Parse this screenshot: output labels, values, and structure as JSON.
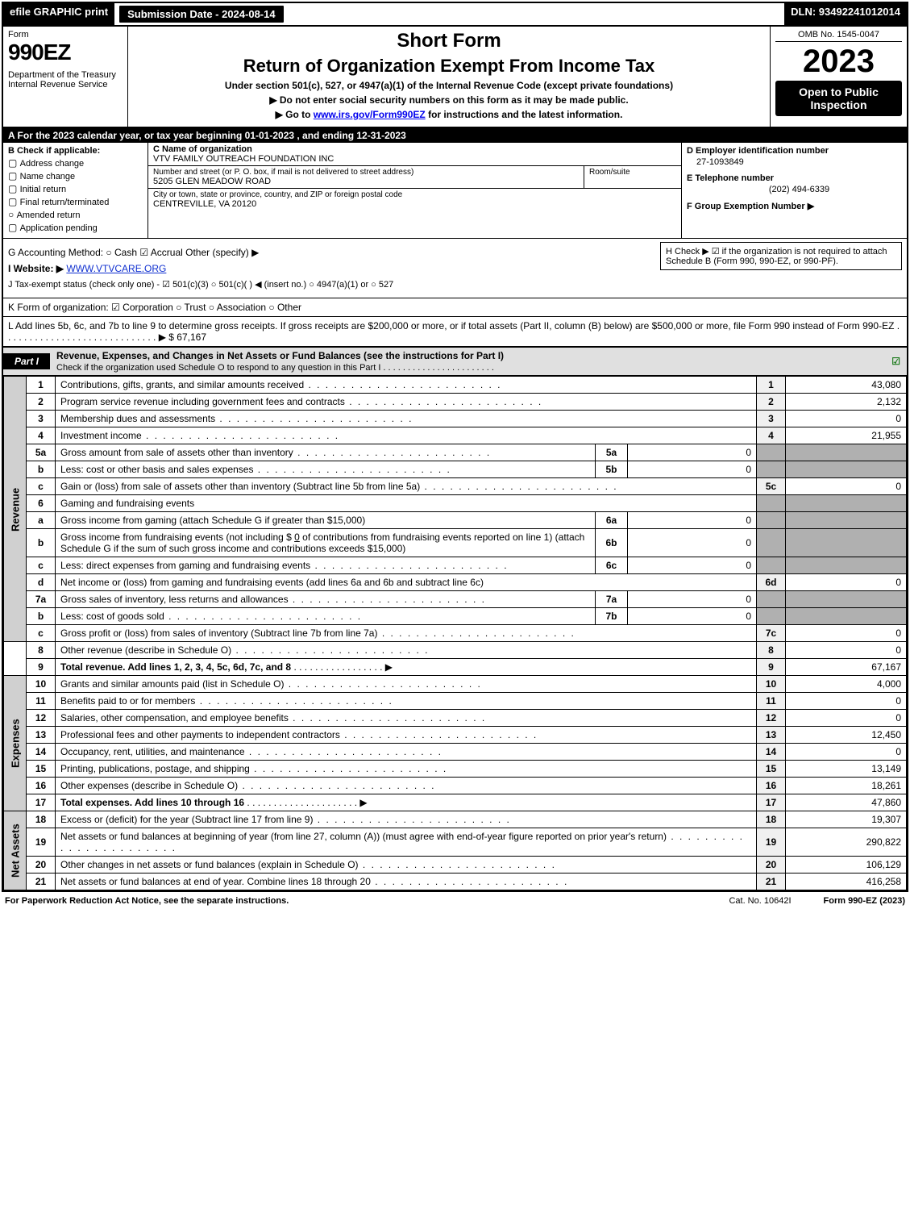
{
  "topbar": {
    "efile": "efile GRAPHIC print",
    "submission": "Submission Date - 2024-08-14",
    "dln": "DLN: 93492241012014"
  },
  "header": {
    "form_label": "Form",
    "form_num": "990EZ",
    "dept": "Department of the Treasury\nInternal Revenue Service",
    "short": "Short Form",
    "title": "Return of Organization Exempt From Income Tax",
    "subtitle": "Under section 501(c), 527, or 4947(a)(1) of the Internal Revenue Code (except private foundations)",
    "instr1": "▶ Do not enter social security numbers on this form as it may be made public.",
    "instr2_pre": "▶ Go to ",
    "instr2_link": "www.irs.gov/Form990EZ",
    "instr2_post": " for instructions and the latest information.",
    "omb": "OMB No. 1545-0047",
    "year": "2023",
    "inspection": "Open to Public Inspection"
  },
  "row_a": "A  For the 2023 calendar year, or tax year beginning 01-01-2023 , and ending 12-31-2023",
  "col_b": {
    "title": "B  Check if applicable:",
    "opts": [
      "Address change",
      "Name change",
      "Initial return",
      "Final return/terminated",
      "Amended return",
      "Application pending"
    ]
  },
  "box_c": {
    "label": "C Name of organization",
    "name": "VTV FAMILY OUTREACH FOUNDATION INC",
    "street_label": "Number and street (or P. O. box, if mail is not delivered to street address)",
    "street": "5205 GLEN MEADOW ROAD",
    "suite_label": "Room/suite",
    "city_label": "City or town, state or province, country, and ZIP or foreign postal code",
    "city": "CENTREVILLE, VA  20120"
  },
  "col_def": {
    "d_label": "D Employer identification number",
    "d_val": "27-1093849",
    "e_label": "E Telephone number",
    "e_val": "(202) 494-6339",
    "f_label": "F Group Exemption Number   ▶"
  },
  "ghij": {
    "g": "G Accounting Method:   ○ Cash   ☑ Accrual   Other (specify) ▶ ",
    "i_pre": "I Website: ▶",
    "i_link": "WWW.VTVCARE.ORG",
    "j": "J Tax-exempt status (check only one) -  ☑ 501(c)(3)  ○ 501(c)(  ) ◀ (insert no.)  ○ 4947(a)(1) or  ○ 527",
    "h": "H  Check ▶ ☑ if the organization is not required to attach Schedule B (Form 990, 990-EZ, or 990-PF)."
  },
  "k": "K Form of organization:   ☑ Corporation   ○ Trust   ○ Association   ○ Other",
  "l": {
    "text": "L Add lines 5b, 6c, and 7b to line 9 to determine gross receipts. If gross receipts are $200,000 or more, or if total assets (Part II, column (B) below) are $500,000 or more, file Form 990 instead of Form 990-EZ . . . . . . . . . . . . . . . . . . . . . . . . . . . . .   ▶ $",
    "amount": "67,167"
  },
  "part1": {
    "tab": "Part I",
    "title": "Revenue, Expenses, and Changes in Net Assets or Fund Balances (see the instructions for Part I)",
    "subtitle": "Check if the organization used Schedule O to respond to any question in this Part I . . . . . . . . . . . . . . . . . . . . . . ."
  },
  "sidelabels": {
    "revenue": "Revenue",
    "expenses": "Expenses",
    "netassets": "Net Assets"
  },
  "lines": {
    "l1": {
      "num": "1",
      "desc": "Contributions, gifts, grants, and similar amounts received",
      "rn": "1",
      "amt": "43,080"
    },
    "l2": {
      "num": "2",
      "desc": "Program service revenue including government fees and contracts",
      "rn": "2",
      "amt": "2,132"
    },
    "l3": {
      "num": "3",
      "desc": "Membership dues and assessments",
      "rn": "3",
      "amt": "0"
    },
    "l4": {
      "num": "4",
      "desc": "Investment income",
      "rn": "4",
      "amt": "21,955"
    },
    "l5a": {
      "num": "5a",
      "desc": "Gross amount from sale of assets other than inventory",
      "sn": "5a",
      "sv": "0"
    },
    "l5b": {
      "num": "b",
      "desc": "Less: cost or other basis and sales expenses",
      "sn": "5b",
      "sv": "0"
    },
    "l5c": {
      "num": "c",
      "desc": "Gain or (loss) from sale of assets other than inventory (Subtract line 5b from line 5a)",
      "rn": "5c",
      "amt": "0"
    },
    "l6": {
      "num": "6",
      "desc": "Gaming and fundraising events"
    },
    "l6a": {
      "num": "a",
      "desc": "Gross income from gaming (attach Schedule G if greater than $15,000)",
      "sn": "6a",
      "sv": "0"
    },
    "l6b": {
      "num": "b",
      "desc": "Gross income from fundraising events (not including $ ",
      "desc_mid": "0",
      "desc2": " of contributions from fundraising events reported on line 1) (attach Schedule G if the sum of such gross income and contributions exceeds $15,000)",
      "sn": "6b",
      "sv": "0"
    },
    "l6c": {
      "num": "c",
      "desc": "Less: direct expenses from gaming and fundraising events",
      "sn": "6c",
      "sv": "0"
    },
    "l6d": {
      "num": "d",
      "desc": "Net income or (loss) from gaming and fundraising events (add lines 6a and 6b and subtract line 6c)",
      "rn": "6d",
      "amt": "0"
    },
    "l7a": {
      "num": "7a",
      "desc": "Gross sales of inventory, less returns and allowances",
      "sn": "7a",
      "sv": "0"
    },
    "l7b": {
      "num": "b",
      "desc": "Less: cost of goods sold",
      "sn": "7b",
      "sv": "0"
    },
    "l7c": {
      "num": "c",
      "desc": "Gross profit or (loss) from sales of inventory (Subtract line 7b from line 7a)",
      "rn": "7c",
      "amt": "0"
    },
    "l8": {
      "num": "8",
      "desc": "Other revenue (describe in Schedule O)",
      "rn": "8",
      "amt": "0"
    },
    "l9": {
      "num": "9",
      "desc": "Total revenue. Add lines 1, 2, 3, 4, 5c, 6d, 7c, and 8",
      "rn": "9",
      "amt": "67,167"
    },
    "l10": {
      "num": "10",
      "desc": "Grants and similar amounts paid (list in Schedule O)",
      "rn": "10",
      "amt": "4,000"
    },
    "l11": {
      "num": "11",
      "desc": "Benefits paid to or for members",
      "rn": "11",
      "amt": "0"
    },
    "l12": {
      "num": "12",
      "desc": "Salaries, other compensation, and employee benefits",
      "rn": "12",
      "amt": "0"
    },
    "l13": {
      "num": "13",
      "desc": "Professional fees and other payments to independent contractors",
      "rn": "13",
      "amt": "12,450"
    },
    "l14": {
      "num": "14",
      "desc": "Occupancy, rent, utilities, and maintenance",
      "rn": "14",
      "amt": "0"
    },
    "l15": {
      "num": "15",
      "desc": "Printing, publications, postage, and shipping",
      "rn": "15",
      "amt": "13,149"
    },
    "l16": {
      "num": "16",
      "desc": "Other expenses (describe in Schedule O)",
      "rn": "16",
      "amt": "18,261"
    },
    "l17": {
      "num": "17",
      "desc": "Total expenses. Add lines 10 through 16",
      "rn": "17",
      "amt": "47,860"
    },
    "l18": {
      "num": "18",
      "desc": "Excess or (deficit) for the year (Subtract line 17 from line 9)",
      "rn": "18",
      "amt": "19,307"
    },
    "l19": {
      "num": "19",
      "desc": "Net assets or fund balances at beginning of year (from line 27, column (A)) (must agree with end-of-year figure reported on prior year's return)",
      "rn": "19",
      "amt": "290,822"
    },
    "l20": {
      "num": "20",
      "desc": "Other changes in net assets or fund balances (explain in Schedule O)",
      "rn": "20",
      "amt": "106,129"
    },
    "l21": {
      "num": "21",
      "desc": "Net assets or fund balances at end of year. Combine lines 18 through 20",
      "rn": "21",
      "amt": "416,258"
    }
  },
  "footer": {
    "left": "For Paperwork Reduction Act Notice, see the separate instructions.",
    "mid": "Cat. No. 10642I",
    "right": "Form 990-EZ (2023)"
  },
  "colors": {
    "black": "#000000",
    "white": "#ffffff",
    "shade": "#b0b0b0",
    "greylabel": "#d0d0d0",
    "link": "#1030d0",
    "check_green": "#1a7a1a"
  }
}
